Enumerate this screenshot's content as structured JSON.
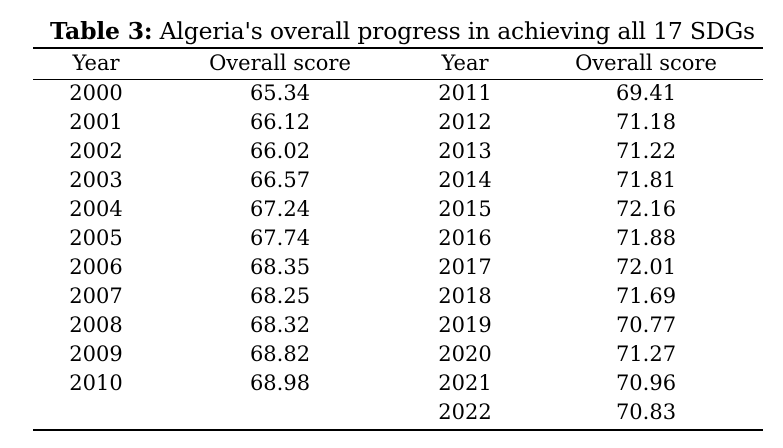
{
  "caption": {
    "label": "Table 3:",
    "text": " Algeria's overall progress in achieving all 17 SDGs"
  },
  "headers": [
    "Year",
    "Overall score",
    "Year",
    "Overall score"
  ],
  "rows": [
    [
      "2000",
      "65.34",
      "2011",
      "69.41"
    ],
    [
      "2001",
      "66.12",
      "2012",
      "71.18"
    ],
    [
      "2002",
      "66.02",
      "2013",
      "71.22"
    ],
    [
      "2003",
      "66.57",
      "2014",
      "71.81"
    ],
    [
      "2004",
      "67.24",
      "2015",
      "72.16"
    ],
    [
      "2005",
      "67.74",
      "2016",
      "71.88"
    ],
    [
      "2006",
      "68.35",
      "2017",
      "72.01"
    ],
    [
      "2007",
      "68.25",
      "2018",
      "71.69"
    ],
    [
      "2008",
      "68.32",
      "2019",
      "70.77"
    ],
    [
      "2009",
      "68.82",
      "2020",
      "71.27"
    ],
    [
      "2010",
      "68.98",
      "2021",
      "70.96"
    ],
    [
      "",
      "",
      "2022",
      "70.83"
    ]
  ]
}
